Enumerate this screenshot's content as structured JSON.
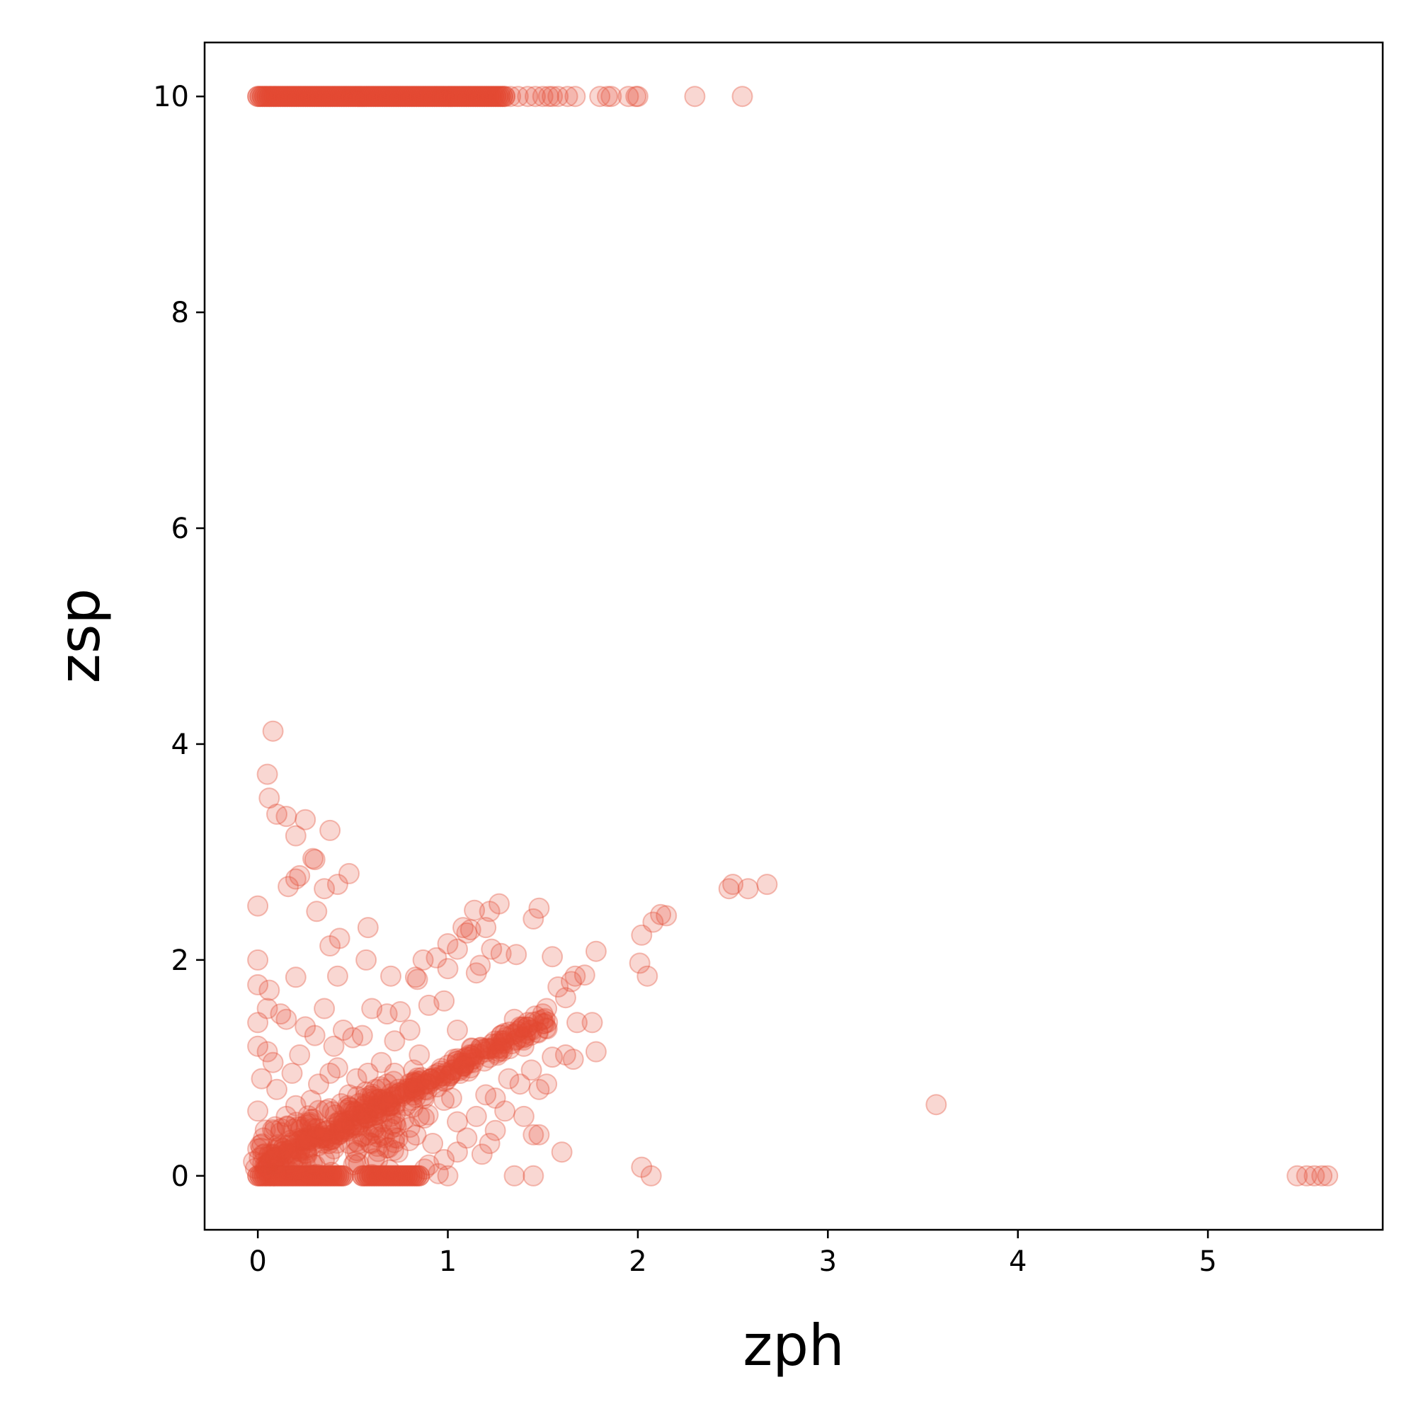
{
  "chart_data": {
    "type": "scatter",
    "xlabel": "zph",
    "ylabel": "zsp",
    "xlim": [
      -0.28,
      5.92
    ],
    "ylim": [
      -0.5,
      10.5
    ],
    "xticks": [
      0,
      1,
      2,
      3,
      4,
      5
    ],
    "yticks": [
      0,
      2,
      4,
      6,
      8,
      10
    ],
    "grid": false,
    "legend": "none",
    "marker_color": "#e34a33",
    "marker_alpha": 0.22,
    "series": [
      {
        "points": [
          [
            0.08,
            4.12
          ],
          [
            0.05,
            3.72
          ],
          [
            0.06,
            3.5
          ],
          [
            0.1,
            3.35
          ],
          [
            0.15,
            3.33
          ],
          [
            0.25,
            3.3
          ],
          [
            0.2,
            3.15
          ],
          [
            0.38,
            3.2
          ],
          [
            0.29,
            2.94
          ],
          [
            0.3,
            2.93
          ],
          [
            0.22,
            2.78
          ],
          [
            0.2,
            2.75
          ],
          [
            0.16,
            2.68
          ],
          [
            0.35,
            2.66
          ],
          [
            0.42,
            2.7
          ],
          [
            0.48,
            2.8
          ],
          [
            0.31,
            2.45
          ],
          [
            0.0,
            2.5
          ],
          [
            0.38,
            2.13
          ],
          [
            0.43,
            2.2
          ],
          [
            0.58,
            2.3
          ],
          [
            0.57,
            2.0
          ],
          [
            0.0,
            2.0
          ],
          [
            0.2,
            1.84
          ],
          [
            0.42,
            1.85
          ],
          [
            0.0,
            1.77
          ],
          [
            0.06,
            1.72
          ],
          [
            0.7,
            1.85
          ],
          [
            0.83,
            1.84
          ],
          [
            0.84,
            1.82
          ],
          [
            0.87,
            2.0
          ],
          [
            0.94,
            2.02
          ],
          [
            1.0,
            2.15
          ],
          [
            1.05,
            2.1
          ],
          [
            1.08,
            2.3
          ],
          [
            1.1,
            2.25
          ],
          [
            1.12,
            2.28
          ],
          [
            1.14,
            2.46
          ],
          [
            1.22,
            2.45
          ],
          [
            1.27,
            2.52
          ],
          [
            1.2,
            2.3
          ],
          [
            1.23,
            2.1
          ],
          [
            1.28,
            2.06
          ],
          [
            1.36,
            2.05
          ],
          [
            1.45,
            2.38
          ],
          [
            1.48,
            2.48
          ],
          [
            1.0,
            1.92
          ],
          [
            1.15,
            1.88
          ],
          [
            1.17,
            1.95
          ],
          [
            1.55,
            2.03
          ],
          [
            1.78,
            2.08
          ],
          [
            1.58,
            1.75
          ],
          [
            1.62,
            1.65
          ],
          [
            1.65,
            1.8
          ],
          [
            1.67,
            1.85
          ],
          [
            1.72,
            1.86
          ],
          [
            1.68,
            1.42
          ],
          [
            1.76,
            1.42
          ],
          [
            1.62,
            1.12
          ],
          [
            1.66,
            1.08
          ],
          [
            1.78,
            1.15
          ],
          [
            1.55,
            1.1
          ],
          [
            1.4,
            1.2
          ],
          [
            1.44,
            0.98
          ],
          [
            1.48,
            0.8
          ],
          [
            1.52,
            0.85
          ],
          [
            1.4,
            0.55
          ],
          [
            1.45,
            0.38
          ],
          [
            1.48,
            0.38
          ],
          [
            1.6,
            0.22
          ],
          [
            1.35,
            0.0
          ],
          [
            1.45,
            0.0
          ],
          [
            2.01,
            1.97
          ],
          [
            2.05,
            1.85
          ],
          [
            2.02,
            2.23
          ],
          [
            2.08,
            2.35
          ],
          [
            2.12,
            2.42
          ],
          [
            2.15,
            2.41
          ],
          [
            2.48,
            2.66
          ],
          [
            2.5,
            2.7
          ],
          [
            2.58,
            2.66
          ],
          [
            2.68,
            2.7
          ],
          [
            2.02,
            0.08
          ],
          [
            2.07,
            0.0
          ],
          [
            3.57,
            0.66
          ],
          [
            5.47,
            0.0
          ],
          [
            5.52,
            0.0
          ],
          [
            5.56,
            0.0
          ],
          [
            5.6,
            0.0
          ],
          [
            5.63,
            0.0
          ],
          [
            0.05,
            1.55
          ],
          [
            0.12,
            1.5
          ],
          [
            0.15,
            1.45
          ],
          [
            0.0,
            1.42
          ],
          [
            0.25,
            1.38
          ],
          [
            0.35,
            1.55
          ],
          [
            0.45,
            1.35
          ],
          [
            0.55,
            1.3
          ],
          [
            0.6,
            1.55
          ],
          [
            0.68,
            1.5
          ],
          [
            0.75,
            1.52
          ],
          [
            0.8,
            1.35
          ],
          [
            0.9,
            1.58
          ],
          [
            0.98,
            1.62
          ],
          [
            1.05,
            1.35
          ],
          [
            0.0,
            1.2
          ],
          [
            0.05,
            1.15
          ],
          [
            0.22,
            1.12
          ],
          [
            0.3,
            1.3
          ],
          [
            0.4,
            1.2
          ],
          [
            0.5,
            1.28
          ],
          [
            0.65,
            1.05
          ],
          [
            0.72,
            1.25
          ],
          [
            0.85,
            1.12
          ],
          [
            0.95,
            0.95
          ],
          [
            1.08,
            1.02
          ],
          [
            1.12,
            1.0
          ],
          [
            1.2,
            0.75
          ],
          [
            1.25,
            0.72
          ],
          [
            1.3,
            0.6
          ],
          [
            1.15,
            0.55
          ],
          [
            1.05,
            0.5
          ],
          [
            1.1,
            0.35
          ],
          [
            1.22,
            0.3
          ],
          [
            1.25,
            0.42
          ],
          [
            1.18,
            0.2
          ],
          [
            1.05,
            0.22
          ],
          [
            0.98,
            0.15
          ],
          [
            0.9,
            0.1
          ],
          [
            0.95,
            0.02
          ],
          [
            1.0,
            0.0
          ],
          [
            0.92,
            0.3
          ],
          [
            0.8,
            0.45
          ],
          [
            0.85,
            0.55
          ],
          [
            0.7,
            0.55
          ],
          [
            0.62,
            0.45
          ],
          [
            0.55,
            0.5
          ],
          [
            0.48,
            0.3
          ],
          [
            0.4,
            0.25
          ],
          [
            0.35,
            0.15
          ],
          [
            0.3,
            0.1
          ],
          [
            0.25,
            0.35
          ],
          [
            0.2,
            0.05
          ],
          [
            0.18,
            0.95
          ],
          [
            0.1,
            0.8
          ],
          [
            0.08,
            1.05
          ],
          [
            0.02,
            0.9
          ],
          [
            0.0,
            0.6
          ],
          [
            0.03,
            0.35
          ],
          [
            0.0,
            0.25
          ],
          [
            0.06,
            0.2
          ],
          [
            0.12,
            0.4
          ],
          [
            0.15,
            0.55
          ],
          [
            0.2,
            0.65
          ],
          [
            0.28,
            0.7
          ],
          [
            0.32,
            0.85
          ],
          [
            0.38,
            0.95
          ],
          [
            0.42,
            1.0
          ],
          [
            0.48,
            0.75
          ],
          [
            0.52,
            0.9
          ],
          [
            0.58,
            0.95
          ],
          [
            0.62,
            0.8
          ],
          [
            0.68,
            0.85
          ],
          [
            0.72,
            0.95
          ],
          [
            0.78,
            0.65
          ],
          [
            0.82,
            0.98
          ],
          [
            0.88,
            0.8
          ],
          [
            0.92,
            0.88
          ],
          [
            0.98,
            0.7
          ],
          [
            1.02,
            0.72
          ],
          [
            1.35,
            1.45
          ],
          [
            1.38,
            1.38
          ],
          [
            1.42,
            1.42
          ],
          [
            1.46,
            1.48
          ],
          [
            1.5,
            1.5
          ],
          [
            1.52,
            1.55
          ],
          [
            1.3,
            1.32
          ],
          [
            1.28,
            1.25
          ],
          [
            1.32,
            0.9
          ],
          [
            1.38,
            0.85
          ],
          [
            1.26,
            1.18
          ],
          [
            1.2,
            1.15
          ]
        ],
        "dense_bands": [
          {
            "y": 10.0,
            "x_from": 0.0,
            "x_to": 1.3,
            "n": 110
          },
          {
            "y": 0.0,
            "x_from": 0.0,
            "x_to": 0.45,
            "n": 40
          },
          {
            "y": 0.0,
            "x_from": 0.55,
            "x_to": 0.85,
            "n": 25
          }
        ],
        "sparse_band": {
          "y": 10.0,
          "x": [
            1.33,
            1.37,
            1.42,
            1.46,
            1.5,
            1.53,
            1.55,
            1.58,
            1.63,
            1.67,
            1.8,
            1.84,
            1.86,
            1.95,
            1.99,
            2.0,
            2.3,
            2.55
          ]
        },
        "dense_trend": {
          "from": [
            0.0,
            0.08
          ],
          "to": [
            1.5,
            1.42
          ],
          "n": 90,
          "spread": 0.12
        },
        "dense_blob": {
          "x_range": [
            0.0,
            0.9
          ],
          "y_range": [
            0.0,
            1.0
          ],
          "n": 160
        }
      }
    ]
  }
}
